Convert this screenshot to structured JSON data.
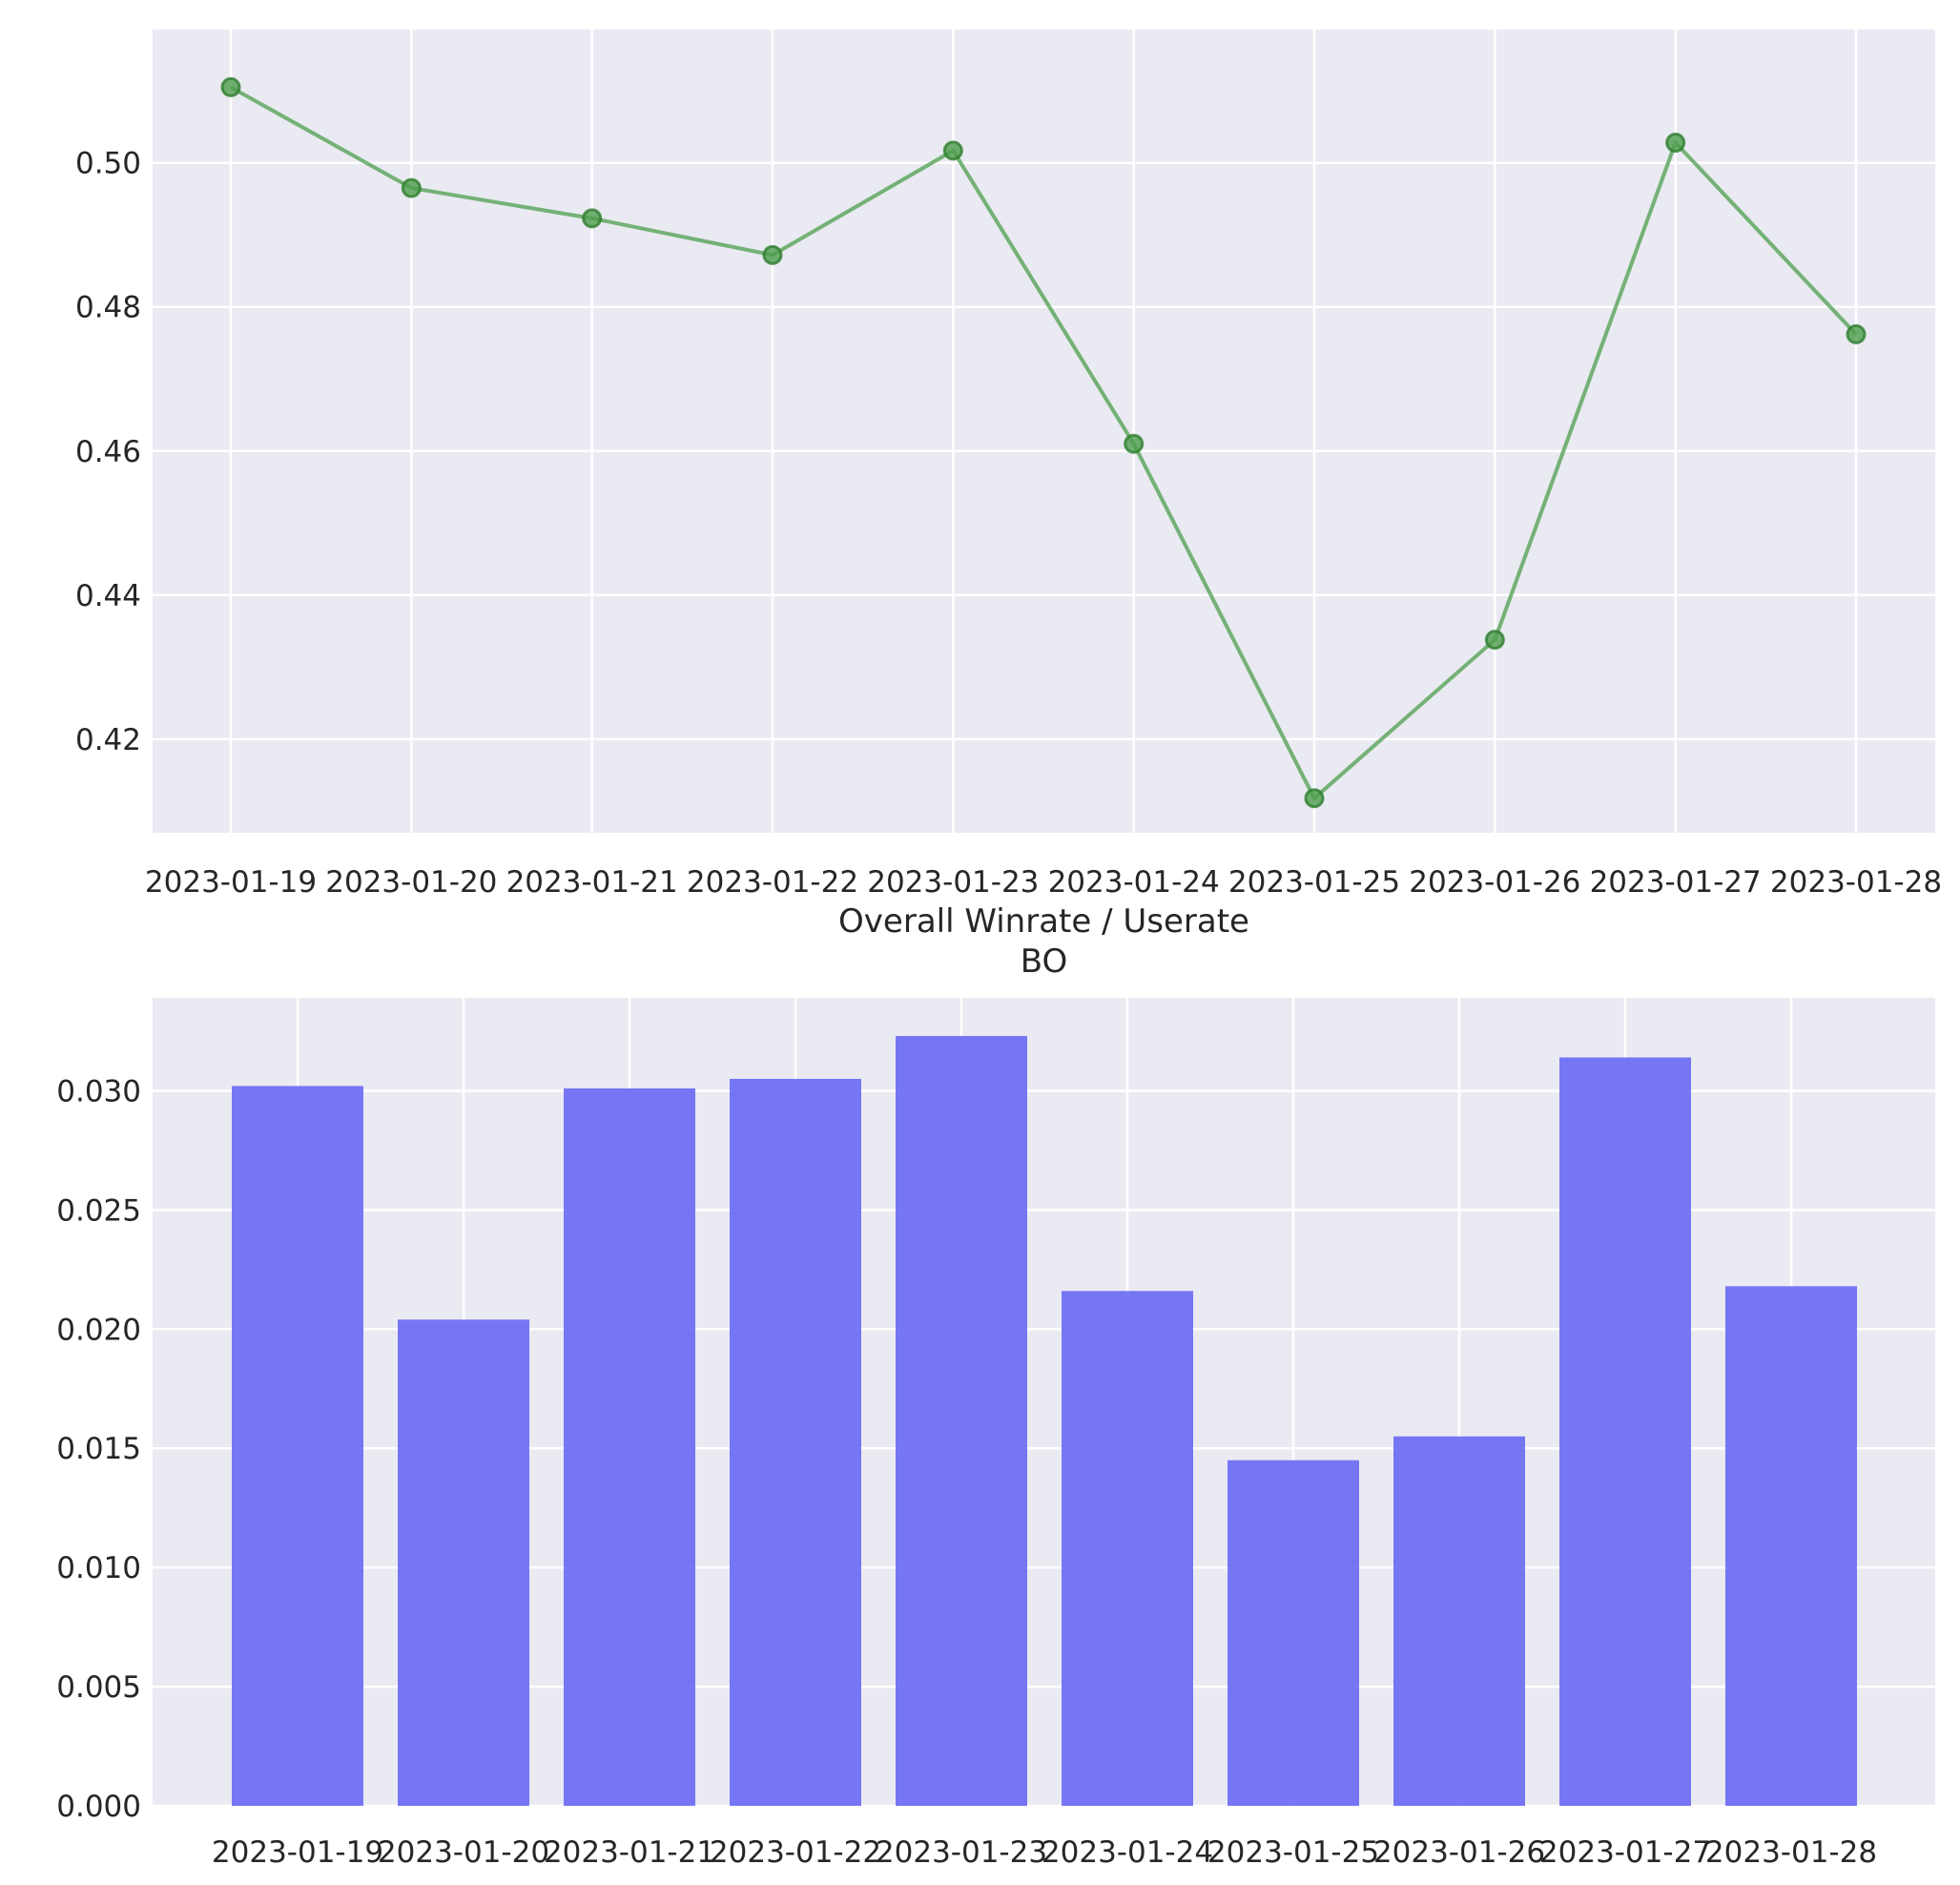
{
  "chart_data": [
    {
      "type": "line",
      "title": "",
      "xlabel": "",
      "ylabel": "",
      "x": [
        "2023-01-19",
        "2023-01-20",
        "2023-01-21",
        "2023-01-22",
        "2023-01-23",
        "2023-01-24",
        "2023-01-25",
        "2023-01-26",
        "2023-01-27",
        "2023-01-28"
      ],
      "series": [
        {
          "values": [
            0.5105,
            0.4965,
            0.4923,
            0.4872,
            0.5017,
            0.461,
            0.4118,
            0.4338,
            0.5028,
            0.4762
          ]
        }
      ],
      "ylim": [
        0.407,
        0.5185
      ],
      "yticks": [
        0.42,
        0.44,
        0.46,
        0.48,
        0.5
      ],
      "ytick_labels": [
        "0.42",
        "0.44",
        "0.46",
        "0.48",
        "0.50"
      ],
      "grid": true,
      "color": "#4c9d4c",
      "marker": "circle"
    },
    {
      "type": "bar",
      "title": "Overall Winrate / Userate\nBO",
      "title_lines": [
        "Overall Winrate / Userate",
        "BO"
      ],
      "xlabel": "",
      "ylabel": "",
      "categories": [
        "2023-01-19",
        "2023-01-20",
        "2023-01-21",
        "2023-01-22",
        "2023-01-23",
        "2023-01-24",
        "2023-01-25",
        "2023-01-26",
        "2023-01-27",
        "2023-01-28"
      ],
      "values": [
        0.0302,
        0.0204,
        0.0301,
        0.0305,
        0.0323,
        0.0216,
        0.0145,
        0.0155,
        0.0314,
        0.0218
      ],
      "ylim": [
        0,
        0.0339
      ],
      "yticks": [
        0.0,
        0.005,
        0.01,
        0.015,
        0.02,
        0.025,
        0.03
      ],
      "ytick_labels": [
        "0.000",
        "0.005",
        "0.010",
        "0.015",
        "0.020",
        "0.025",
        "0.030"
      ],
      "grid": true,
      "color": "#6b6bf5"
    }
  ]
}
